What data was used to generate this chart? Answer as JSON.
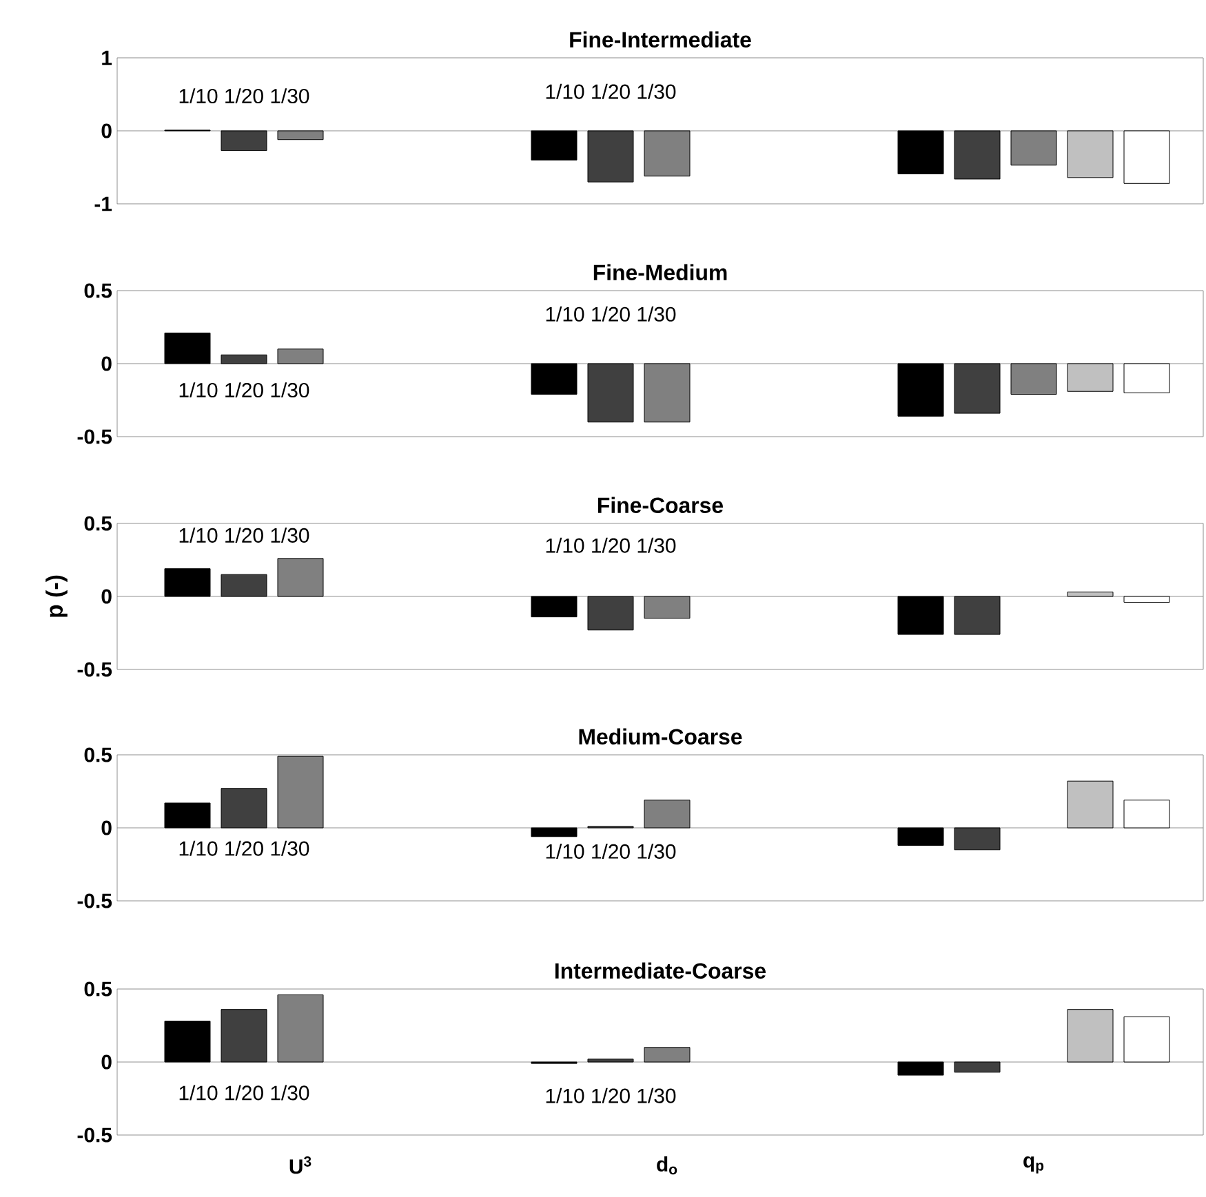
{
  "chart_data": [
    {
      "type": "bar",
      "title": "Fine-Intermediate",
      "categories": [
        null,
        null,
        null
      ],
      "ylim": [
        -1,
        1
      ],
      "yticks": [
        -1,
        0,
        1
      ],
      "series": [
        {
          "color": "#000000",
          "values": [
            0.01,
            -0.4,
            -0.59
          ]
        },
        {
          "color": "#404040",
          "values": [
            -0.27,
            -0.7,
            -0.66
          ]
        },
        {
          "color": "#808080",
          "values": [
            -0.12,
            -0.62,
            -0.47
          ]
        },
        {
          "color": "#c0c0c0",
          "values": [
            null,
            null,
            -0.64
          ]
        },
        {
          "color": "#ffffff",
          "values": [
            null,
            null,
            -0.72
          ]
        }
      ],
      "annotations": [
        "1/10 1/20 1/30",
        "1/10 1/20 1/30"
      ]
    },
    {
      "type": "bar",
      "title": "Fine-Medium",
      "categories": [
        null,
        null,
        null
      ],
      "ylim": [
        -0.5,
        0.5
      ],
      "yticks": [
        -0.5,
        0,
        0.5
      ],
      "series": [
        {
          "color": "#000000",
          "values": [
            0.21,
            -0.21,
            -0.36
          ]
        },
        {
          "color": "#404040",
          "values": [
            0.06,
            -0.4,
            -0.34
          ]
        },
        {
          "color": "#808080",
          "values": [
            0.1,
            -0.4,
            -0.21
          ]
        },
        {
          "color": "#c0c0c0",
          "values": [
            null,
            null,
            -0.19
          ]
        },
        {
          "color": "#ffffff",
          "values": [
            null,
            null,
            -0.2
          ]
        }
      ],
      "annotations": [
        "1/10 1/20 1/30",
        "1/10 1/20 1/30"
      ]
    },
    {
      "type": "bar",
      "title": "Fine-Coarse",
      "categories": [
        null,
        null,
        null
      ],
      "ylim": [
        -0.5,
        0.5
      ],
      "yticks": [
        -0.5,
        0,
        0.5
      ],
      "ylabel": "p (-)",
      "series": [
        {
          "color": "#000000",
          "values": [
            0.19,
            -0.14,
            -0.26
          ]
        },
        {
          "color": "#404040",
          "values": [
            0.15,
            -0.23,
            -0.26
          ]
        },
        {
          "color": "#808080",
          "values": [
            0.26,
            -0.15,
            null
          ]
        },
        {
          "color": "#c0c0c0",
          "values": [
            null,
            null,
            0.03
          ]
        },
        {
          "color": "#ffffff",
          "values": [
            null,
            null,
            -0.04
          ]
        }
      ],
      "annotations": [
        "1/10 1/20 1/30",
        "1/10 1/20 1/30"
      ]
    },
    {
      "type": "bar",
      "title": "Medium-Coarse",
      "categories": [
        null,
        null,
        null
      ],
      "ylim": [
        -0.5,
        0.5
      ],
      "yticks": [
        -0.5,
        0,
        0.5
      ],
      "series": [
        {
          "color": "#000000",
          "values": [
            0.17,
            -0.06,
            -0.12
          ]
        },
        {
          "color": "#404040",
          "values": [
            0.27,
            0.01,
            -0.15
          ]
        },
        {
          "color": "#808080",
          "values": [
            0.49,
            0.19,
            null
          ]
        },
        {
          "color": "#c0c0c0",
          "values": [
            null,
            null,
            0.32
          ]
        },
        {
          "color": "#ffffff",
          "values": [
            null,
            null,
            0.19
          ]
        }
      ],
      "annotations": [
        "1/10 1/20 1/30",
        "1/10 1/20 1/30"
      ]
    },
    {
      "type": "bar",
      "title": "Intermediate-Coarse",
      "categories": [
        "U$^{3}$",
        "d$_{o}$",
        "q$_{p}$"
      ],
      "ylim": [
        -0.5,
        0.5
      ],
      "yticks": [
        -0.5,
        0,
        0.5
      ],
      "series": [
        {
          "color": "#000000",
          "values": [
            0.28,
            -0.01,
            -0.09
          ]
        },
        {
          "color": "#404040",
          "values": [
            0.36,
            0.02,
            -0.07
          ]
        },
        {
          "color": "#808080",
          "values": [
            0.46,
            0.1,
            null
          ]
        },
        {
          "color": "#c0c0c0",
          "values": [
            null,
            null,
            0.36
          ]
        },
        {
          "color": "#ffffff",
          "values": [
            null,
            null,
            0.31
          ]
        }
      ],
      "annotations": [
        "1/10 1/20 1/30",
        "1/10 1/20 1/30"
      ]
    }
  ]
}
